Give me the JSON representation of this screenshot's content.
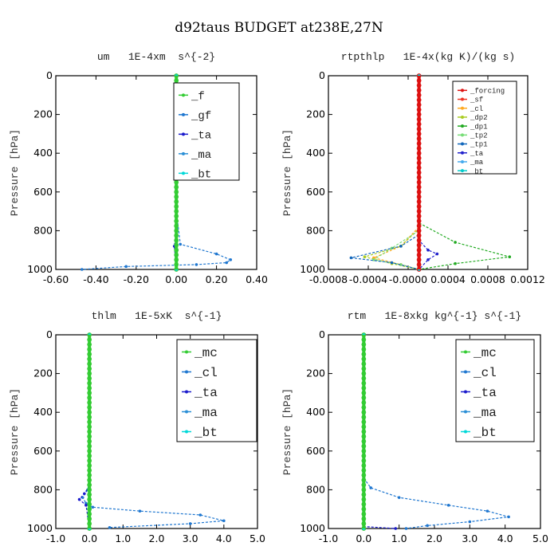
{
  "figure_title": "d92taus  BUDGET at238E,27N",
  "chart_data": [
    {
      "type": "line",
      "title": "um   1E-4xm  s^{-2}",
      "ylabel": "Pressure [hPa]",
      "xlabel": "",
      "xlim": [
        -0.6,
        0.4
      ],
      "ylim": [
        1000,
        0
      ],
      "xticks": [
        "-0.60",
        "-0.40",
        "-0.20",
        "0.00",
        "0.20",
        "0.40"
      ],
      "yticks": [
        "0",
        "200",
        "400",
        "600",
        "800",
        "1000"
      ],
      "legend": "top-right",
      "series": [
        {
          "name": "_f",
          "color": "#33cc33",
          "x": [
            0,
            0,
            0,
            0
          ],
          "y": [
            0,
            500,
            900,
            1000
          ]
        },
        {
          "name": "_gf",
          "color": "#1f77d0",
          "x": [
            0,
            0,
            0.02,
            0.2,
            0.27,
            0.25,
            0.1,
            -0.25,
            -0.47
          ],
          "y": [
            0,
            700,
            870,
            920,
            950,
            965,
            975,
            985,
            1000
          ]
        },
        {
          "name": "_ta",
          "color": "#1a1acc",
          "x": [
            0,
            0,
            -0.01,
            0
          ],
          "y": [
            0,
            800,
            880,
            1000
          ]
        },
        {
          "name": "_ma",
          "color": "#2a8fd6",
          "x": [
            0,
            0,
            0
          ],
          "y": [
            0,
            500,
            1000
          ]
        },
        {
          "name": "_bt",
          "color": "#00d8d8",
          "x": [
            0,
            0,
            0
          ],
          "y": [
            0,
            500,
            1000
          ]
        }
      ]
    },
    {
      "type": "line",
      "title": "rtpthlp   1E-4x(kg K)/(kg s)",
      "ylabel": "Pressure [hPa]",
      "xlabel": "",
      "xlim": [
        -0.001,
        0.0012
      ],
      "ylim": [
        1000,
        0
      ],
      "xticks": [
        "-0.0008",
        "-0.0004",
        "-0.0000",
        "0.0004",
        "0.0008",
        "0.0012"
      ],
      "yticks": [
        "0",
        "200",
        "400",
        "600",
        "800",
        "1000"
      ],
      "legend": "top-right",
      "series": [
        {
          "name": "_forcing",
          "color": "#dd1111",
          "x": [
            0,
            0,
            0
          ],
          "y": [
            0,
            500,
            1000
          ]
        },
        {
          "name": "_sf",
          "color": "#ee3322",
          "x": [
            0,
            0,
            0
          ],
          "y": [
            0,
            500,
            1000
          ]
        },
        {
          "name": "_cl",
          "color": "#ffaa22",
          "x": [
            0,
            0,
            -0.0002,
            -0.0005,
            -0.0002,
            0
          ],
          "y": [
            0,
            780,
            880,
            940,
            975,
            1000
          ]
        },
        {
          "name": "_dp2",
          "color": "#aacc22",
          "x": [
            0,
            0,
            -0.0002,
            -0.0006,
            -0.0003,
            0
          ],
          "y": [
            0,
            790,
            880,
            935,
            970,
            1000
          ]
        },
        {
          "name": "_dp1",
          "color": "#22aa22",
          "x": [
            0,
            0,
            0.0004,
            0.001,
            0.0004,
            0
          ],
          "y": [
            0,
            760,
            860,
            935,
            970,
            1000
          ]
        },
        {
          "name": "_tp2",
          "color": "#77dd77",
          "x": [
            0,
            0,
            -0.0003,
            -0.0005,
            -0.0002,
            0
          ],
          "y": [
            0,
            800,
            890,
            950,
            975,
            1000
          ]
        },
        {
          "name": "_tp1",
          "color": "#1166bb",
          "x": [
            0,
            0,
            -0.0002,
            -0.00075,
            -0.0003,
            0
          ],
          "y": [
            0,
            820,
            880,
            940,
            965,
            1000
          ]
        },
        {
          "name": "_ta",
          "color": "#2222cc",
          "x": [
            0,
            0,
            0.0001,
            0.0002,
            0.0001,
            0
          ],
          "y": [
            0,
            850,
            900,
            920,
            950,
            1000
          ]
        },
        {
          "name": "_ma",
          "color": "#44aaee",
          "x": [
            0,
            0,
            0
          ],
          "y": [
            0,
            500,
            1000
          ]
        },
        {
          "name": "_bt",
          "color": "#00cccc",
          "x": [
            0,
            0,
            0
          ],
          "y": [
            0,
            500,
            1000
          ]
        }
      ]
    },
    {
      "type": "line",
      "title": "thlm   1E-5xK  s^{-1}",
      "ylabel": "Pressure [hPa]",
      "xlabel": "",
      "xlim": [
        -1.0,
        5.0
      ],
      "ylim": [
        1000,
        0
      ],
      "xticks": [
        "-1.0",
        "0.0",
        "1.0",
        "2.0",
        "3.0",
        "4.0",
        "5.0"
      ],
      "yticks": [
        "0",
        "200",
        "400",
        "600",
        "800",
        "1000"
      ],
      "legend": "top-right",
      "series": [
        {
          "name": "_mc",
          "color": "#33cc33",
          "x": [
            0,
            0,
            0
          ],
          "y": [
            0,
            500,
            1000
          ]
        },
        {
          "name": "_cl",
          "color": "#1f77d0",
          "x": [
            0,
            0,
            -0.05,
            -0.2,
            -0.1,
            0.1,
            1.5,
            3.3,
            4.0,
            3.0,
            0.6
          ],
          "y": [
            0,
            750,
            800,
            840,
            870,
            890,
            910,
            930,
            960,
            975,
            995
          ]
        },
        {
          "name": "_ta",
          "color": "#1a1acc",
          "x": [
            0,
            0,
            -0.15,
            -0.3,
            -0.1,
            0
          ],
          "y": [
            0,
            780,
            820,
            850,
            880,
            1000
          ]
        },
        {
          "name": "_ma",
          "color": "#2a8fd6",
          "x": [
            0,
            0,
            0
          ],
          "y": [
            0,
            500,
            1000
          ]
        },
        {
          "name": "_bt",
          "color": "#00d8d8",
          "x": [
            0,
            0,
            0
          ],
          "y": [
            0,
            500,
            1000
          ]
        }
      ]
    },
    {
      "type": "line",
      "title": "rtm   1E-8xkg kg^{-1} s^{-1}",
      "ylabel": "Pressure [hPa]",
      "xlabel": "",
      "xlim": [
        -1.0,
        5.0
      ],
      "ylim": [
        1000,
        0
      ],
      "xticks": [
        "-1.0",
        "0.0",
        "1.0",
        "2.0",
        "3.0",
        "4.0",
        "5.0"
      ],
      "yticks": [
        "0",
        "200",
        "400",
        "600",
        "800",
        "1000"
      ],
      "legend": "top-right",
      "series": [
        {
          "name": "_mc",
          "color": "#33cc33",
          "x": [
            0,
            0,
            0
          ],
          "y": [
            0,
            500,
            1000
          ]
        },
        {
          "name": "_cl",
          "color": "#1f77d0",
          "x": [
            0,
            0,
            0.2,
            1.0,
            2.4,
            3.5,
            4.1,
            3.0,
            1.8,
            1.2
          ],
          "y": [
            0,
            740,
            790,
            840,
            880,
            910,
            940,
            965,
            985,
            1000
          ]
        },
        {
          "name": "_ta",
          "color": "#1a1acc",
          "x": [
            0,
            0,
            0.9
          ],
          "y": [
            0,
            990,
            1000
          ]
        },
        {
          "name": "_ma",
          "color": "#2a8fd6",
          "x": [
            0,
            0,
            0
          ],
          "y": [
            0,
            500,
            1000
          ]
        },
        {
          "name": "_bt",
          "color": "#00d8d8",
          "x": [
            0,
            0,
            0
          ],
          "y": [
            0,
            500,
            1000
          ]
        }
      ]
    }
  ]
}
